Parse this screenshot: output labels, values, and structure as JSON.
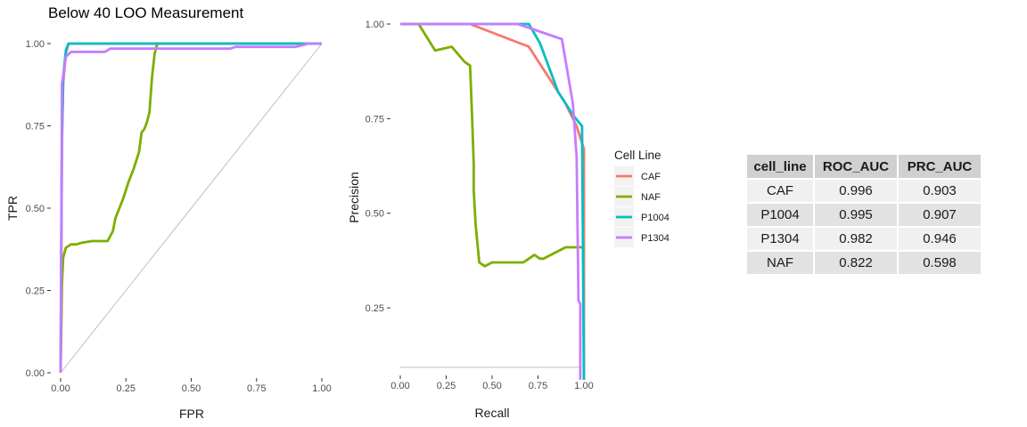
{
  "colors": {
    "CAF": "#F8766D",
    "NAF": "#7CAE00",
    "P1004": "#00BFC4",
    "P1304": "#C77CFF",
    "diagonal": "#bebebe"
  },
  "chart_data": [
    {
      "type": "line",
      "title": "Below 40 LOO Measurement",
      "xlabel": "FPR",
      "ylabel": "TPR",
      "xlim": [
        0,
        1
      ],
      "ylim": [
        0,
        1
      ],
      "xticks": [
        "0.00",
        "0.25",
        "0.50",
        "0.75",
        "1.00"
      ],
      "yticks": [
        "0.00",
        "0.25",
        "0.50",
        "0.75",
        "1.00"
      ],
      "grid": false,
      "reference_line": {
        "x": [
          0,
          1
        ],
        "y": [
          0,
          1
        ]
      },
      "series": [
        {
          "name": "CAF",
          "x": [
            0,
            0.005,
            0.01,
            0.02,
            0.03,
            0.05,
            1.0
          ],
          "y": [
            0,
            0.7,
            0.88,
            0.97,
            1.0,
            1.0,
            1.0
          ]
        },
        {
          "name": "NAF",
          "x": [
            0,
            0.005,
            0.01,
            0.02,
            0.04,
            0.06,
            0.08,
            0.12,
            0.18,
            0.2,
            0.21,
            0.24,
            0.26,
            0.28,
            0.3,
            0.31,
            0.32,
            0.33,
            0.34,
            0.35,
            0.36,
            0.37,
            0.4,
            1.0
          ],
          "y": [
            0,
            0.27,
            0.35,
            0.38,
            0.39,
            0.39,
            0.395,
            0.4,
            0.4,
            0.43,
            0.47,
            0.53,
            0.58,
            0.62,
            0.67,
            0.73,
            0.74,
            0.76,
            0.79,
            0.9,
            0.97,
            1.0,
            1.0,
            1.0
          ]
        },
        {
          "name": "P1004",
          "x": [
            0,
            0.005,
            0.01,
            0.02,
            0.03,
            1.0
          ],
          "y": [
            0,
            0.72,
            0.9,
            0.98,
            1.0,
            1.0
          ]
        },
        {
          "name": "P1304",
          "x": [
            0,
            0.005,
            0.01,
            0.02,
            0.04,
            0.17,
            0.19,
            0.65,
            0.67,
            0.9,
            0.95,
            1.0
          ],
          "y": [
            0,
            0.88,
            0.9,
            0.96,
            0.975,
            0.975,
            0.985,
            0.985,
            0.99,
            0.99,
            1.0,
            1.0
          ]
        }
      ]
    },
    {
      "type": "line",
      "xlabel": "Recall",
      "ylabel": "Precision",
      "xlim": [
        0,
        1
      ],
      "ylim": [
        0.088,
        1
      ],
      "xticks": [
        "0.00",
        "0.25",
        "0.50",
        "0.75",
        "1.00"
      ],
      "yticks": [
        "0.25",
        "0.50",
        "0.75",
        "1.00"
      ],
      "grid": false,
      "reference_line": {
        "x": [
          0,
          0.99
        ],
        "y": [
          0.093,
          0.093
        ]
      },
      "series": [
        {
          "name": "CAF",
          "x": [
            0,
            0.38,
            0.7,
            0.9,
            0.96,
            1.0,
            1.0
          ],
          "y": [
            1.0,
            1.0,
            0.94,
            0.79,
            0.73,
            0.67,
            0.06
          ]
        },
        {
          "name": "NAF",
          "x": [
            0,
            0.1,
            0.19,
            0.28,
            0.35,
            0.38,
            0.39,
            0.4,
            0.4,
            0.41,
            0.43,
            0.46,
            0.5,
            0.55,
            0.58,
            0.6,
            0.63,
            0.67,
            0.7,
            0.73,
            0.76,
            0.78,
            0.82,
            0.86,
            0.9,
            0.95,
            0.99
          ],
          "y": [
            1.0,
            1.0,
            0.93,
            0.94,
            0.9,
            0.89,
            0.77,
            0.63,
            0.56,
            0.47,
            0.37,
            0.36,
            0.37,
            0.37,
            0.37,
            0.37,
            0.37,
            0.37,
            0.38,
            0.39,
            0.38,
            0.38,
            0.39,
            0.4,
            0.41,
            0.41,
            0.41
          ]
        },
        {
          "name": "P1004",
          "x": [
            0,
            0.7,
            0.76,
            0.86,
            0.9,
            0.94,
            0.99,
            1.0
          ],
          "y": [
            1.0,
            1.0,
            0.95,
            0.82,
            0.79,
            0.76,
            0.73,
            0.06
          ]
        },
        {
          "name": "P1304",
          "x": [
            0,
            0.64,
            0.88,
            0.94,
            0.96,
            0.97,
            0.97,
            0.98,
            0.98
          ],
          "y": [
            1.0,
            1.0,
            0.96,
            0.79,
            0.65,
            0.29,
            0.27,
            0.26,
            0.06
          ]
        }
      ]
    }
  ],
  "legend": {
    "title": "Cell Line",
    "placement": "right",
    "entries": [
      "CAF",
      "NAF",
      "P1004",
      "P1304"
    ]
  },
  "table": {
    "headers": [
      "cell_line",
      "ROC_AUC",
      "PRC_AUC"
    ],
    "rows": [
      [
        "CAF",
        "0.996",
        "0.903"
      ],
      [
        "P1004",
        "0.995",
        "0.907"
      ],
      [
        "P1304",
        "0.982",
        "0.946"
      ],
      [
        "NAF",
        "0.822",
        "0.598"
      ]
    ]
  }
}
